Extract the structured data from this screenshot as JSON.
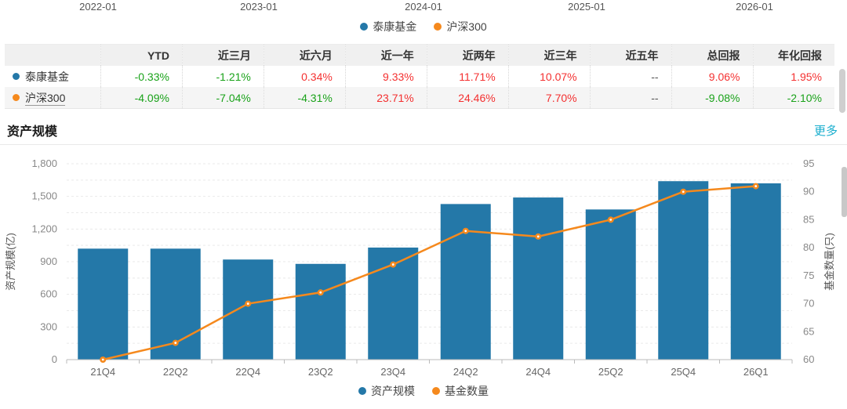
{
  "colors": {
    "primary": "#2478A8",
    "secondary": "#F5891D",
    "up": "#F43030",
    "down": "#19A219",
    "link": "#19AECE"
  },
  "top_chart": {
    "x_labels": [
      "2022-01",
      "2023-01",
      "2024-01",
      "2025-01",
      "2026-01"
    ],
    "legend": [
      {
        "label": "泰康基金",
        "color": "#2478A8"
      },
      {
        "label": "沪深300",
        "color": "#F5891D"
      }
    ]
  },
  "performance_table": {
    "corner": "",
    "columns": [
      "YTD",
      "近三月",
      "近六月",
      "近一年",
      "近两年",
      "近三年",
      "近五年",
      "总回报",
      "年化回报"
    ],
    "rows": [
      {
        "name": "泰康基金",
        "dot_color": "#2478A8",
        "underlined": false,
        "cells": [
          {
            "v": "-0.33%",
            "t": "down"
          },
          {
            "v": "-1.21%",
            "t": "down"
          },
          {
            "v": "0.34%",
            "t": "up"
          },
          {
            "v": "9.33%",
            "t": "up"
          },
          {
            "v": "11.71%",
            "t": "up"
          },
          {
            "v": "10.07%",
            "t": "up"
          },
          {
            "v": "--",
            "t": "none"
          },
          {
            "v": "9.06%",
            "t": "up"
          },
          {
            "v": "1.95%",
            "t": "up"
          }
        ]
      },
      {
        "name": "沪深300",
        "dot_color": "#F5891D",
        "underlined": true,
        "cells": [
          {
            "v": "-4.09%",
            "t": "down"
          },
          {
            "v": "-7.04%",
            "t": "down"
          },
          {
            "v": "-4.31%",
            "t": "down"
          },
          {
            "v": "23.71%",
            "t": "up"
          },
          {
            "v": "24.46%",
            "t": "up"
          },
          {
            "v": "7.70%",
            "t": "up"
          },
          {
            "v": "--",
            "t": "none"
          },
          {
            "v": "-9.08%",
            "t": "down"
          },
          {
            "v": "-2.10%",
            "t": "down"
          }
        ]
      }
    ]
  },
  "section": {
    "title": "资产规模",
    "more_label": "更多"
  },
  "chart_data": {
    "type": "combo",
    "categories": [
      "21Q4",
      "22Q2",
      "22Q4",
      "23Q2",
      "23Q4",
      "24Q2",
      "24Q4",
      "25Q2",
      "25Q4",
      "26Q1"
    ],
    "series": [
      {
        "name": "资产规模",
        "type": "bar",
        "axis": "left",
        "color": "#2478A8",
        "values": [
          1020,
          1020,
          920,
          880,
          1030,
          1430,
          1490,
          1380,
          1640,
          1620
        ]
      },
      {
        "name": "基金数量",
        "type": "line",
        "axis": "right",
        "color": "#F5891D",
        "values": [
          60,
          63,
          70,
          72,
          77,
          83,
          82,
          85,
          90,
          91
        ]
      }
    ],
    "left_axis": {
      "label": "资产规模(亿)",
      "min": 0,
      "max": 1800,
      "tick_step": 300,
      "grid_step": 150,
      "tick_labels": [
        "0",
        "300",
        "600",
        "900",
        "1,200",
        "1,500",
        "1,800"
      ]
    },
    "right_axis": {
      "label": "基金数量(只)",
      "min": 60,
      "max": 95,
      "tick_step": 5,
      "tick_labels": [
        "60",
        "65",
        "70",
        "75",
        "80",
        "85",
        "90",
        "95"
      ]
    },
    "grid": true,
    "legend_position": "bottom"
  }
}
